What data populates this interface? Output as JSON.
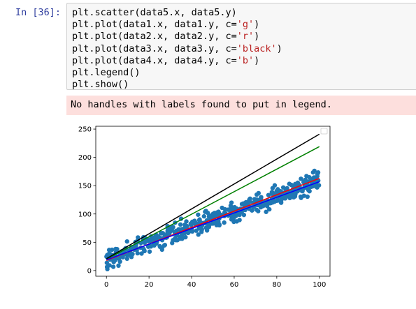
{
  "cell": {
    "prompt": "In [36]:",
    "code_lines": [
      [
        {
          "t": "plt.scatter(data5.x, data5.y)",
          "c": ""
        }
      ],
      [
        {
          "t": "plt.plot(data1.x, data1.y, c=",
          "c": ""
        },
        {
          "t": "'g'",
          "c": "str"
        },
        {
          "t": ")",
          "c": ""
        }
      ],
      [
        {
          "t": "plt.plot(data2.x, data2.y, c=",
          "c": ""
        },
        {
          "t": "'r'",
          "c": "str"
        },
        {
          "t": ")",
          "c": ""
        }
      ],
      [
        {
          "t": "plt.plot(data3.x, data3.y, c=",
          "c": ""
        },
        {
          "t": "'black'",
          "c": "str"
        },
        {
          "t": ")",
          "c": ""
        }
      ],
      [
        {
          "t": "plt.plot(data4.x, data4.y, c=",
          "c": ""
        },
        {
          "t": "'b'",
          "c": "str"
        },
        {
          "t": ")",
          "c": ""
        }
      ],
      [
        {
          "t": "plt.legend()",
          "c": ""
        }
      ],
      [
        {
          "t": "plt.show()",
          "c": ""
        }
      ]
    ],
    "stderr": "No handles with labels found to put in legend."
  },
  "chart_data": {
    "type": "scatter",
    "xlim": [
      -5,
      105
    ],
    "ylim": [
      -10,
      255
    ],
    "x_ticks": [
      0,
      20,
      40,
      60,
      80,
      100
    ],
    "y_ticks": [
      0,
      50,
      100,
      150,
      200,
      250
    ],
    "grid": false,
    "legend": "top-right (empty)",
    "scatter": {
      "color": "#1f77b4",
      "trend_start": [
        0,
        20
      ],
      "trend_end": [
        100,
        160
      ],
      "spread": 12,
      "count": 500
    },
    "lines": [
      {
        "color": "#008000",
        "x": [
          0,
          100
        ],
        "y": [
          20,
          219
        ]
      },
      {
        "color": "#ff0000",
        "x": [
          0,
          100
        ],
        "y": [
          18,
          163
        ]
      },
      {
        "color": "#000000",
        "x": [
          0,
          100
        ],
        "y": [
          21,
          241
        ]
      },
      {
        "color": "#0000ff",
        "x": [
          0,
          100
        ],
        "y": [
          19,
          157
        ]
      }
    ]
  }
}
